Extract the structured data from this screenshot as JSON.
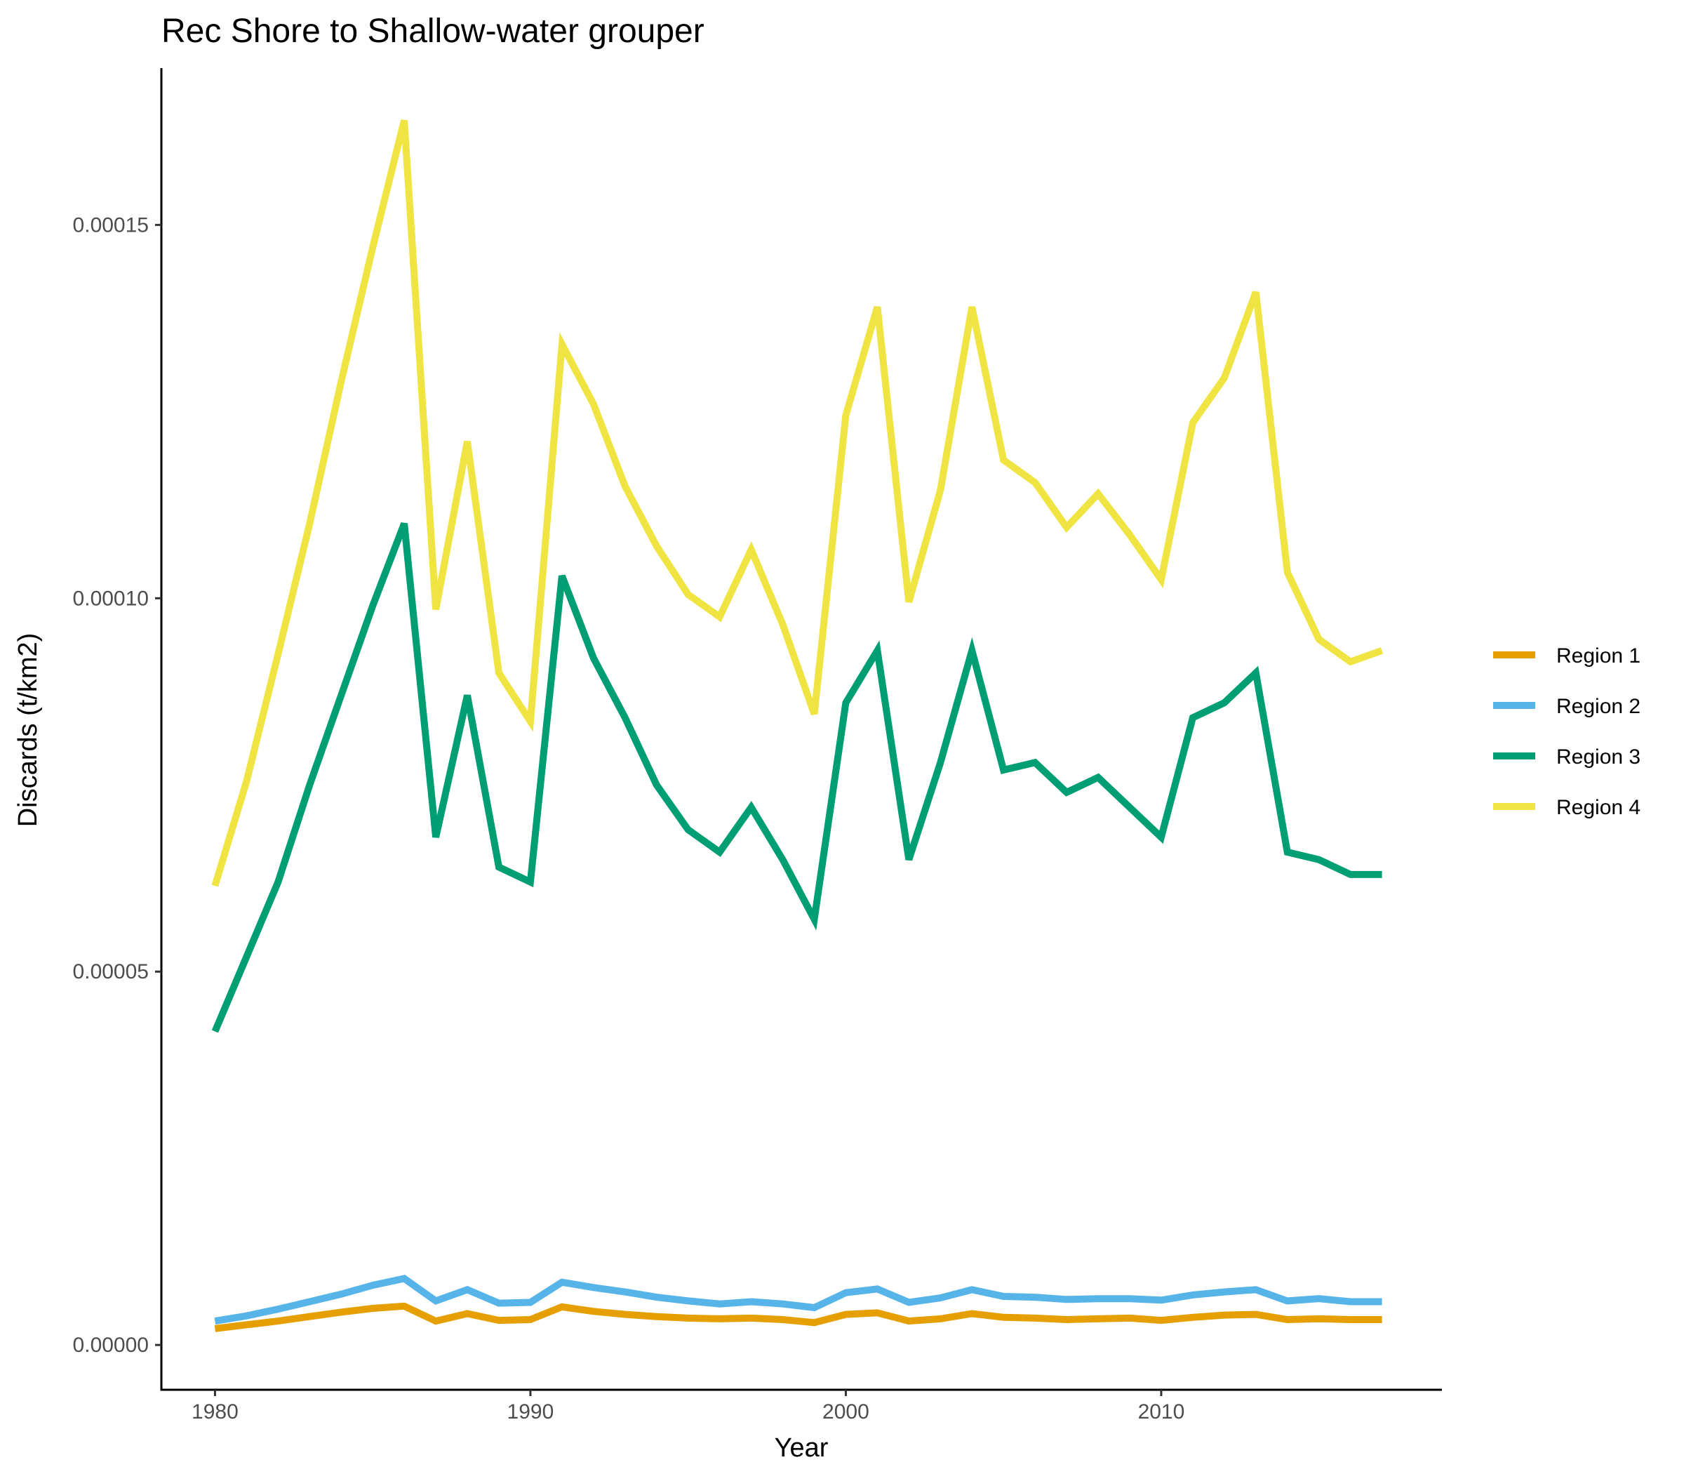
{
  "chart_data": {
    "type": "line",
    "title": "Rec Shore to Shallow-water grouper",
    "xlabel": "Year",
    "ylabel": "Discards (t/km2)",
    "xlim": [
      1978.3,
      2018.9
    ],
    "ylim": [
      -6e-06,
      0.000171
    ],
    "x_ticks": [
      1980,
      1990,
      2000,
      2010
    ],
    "x_tick_labels": [
      "1980",
      "1990",
      "2000",
      "2010"
    ],
    "y_ticks": [
      0,
      5e-05,
      0.0001,
      0.00015
    ],
    "y_tick_labels": [
      "0.00000",
      "0.00005",
      "0.00010",
      "0.00015"
    ],
    "grid": false,
    "legend_position": "right",
    "x": [
      1980.0,
      1981.0,
      1982.0,
      1983.0,
      1984.0,
      1985.0,
      1986.0,
      1987.0,
      1988.0,
      1989.0,
      1990.0,
      1991.0,
      1992.0,
      1993.0,
      1994.0,
      1995.0,
      1996.0,
      1997.0,
      1998.0,
      1999.0,
      2000.0,
      2001.0,
      2002.0,
      2003.0,
      2004.0,
      2005.0,
      2006.0,
      2007.0,
      2008.0,
      2009.0,
      2010.0,
      2011.0,
      2012.0,
      2013.0,
      2014.0,
      2015.0,
      2016.0,
      2017.0
    ],
    "series": [
      {
        "name": "Region 1",
        "color": "#E69F00",
        "values": [
          2.2e-06,
          2.7e-06,
          3.2e-06,
          3.8e-06,
          4.4e-06,
          4.9e-06,
          5.2e-06,
          3.2e-06,
          4.2e-06,
          3.3e-06,
          3.4e-06,
          5.1e-06,
          4.5e-06,
          4.1e-06,
          3.8e-06,
          3.6e-06,
          3.5e-06,
          3.6e-06,
          3.4e-06,
          3e-06,
          4.1e-06,
          4.3e-06,
          3.2e-06,
          3.5e-06,
          4.2e-06,
          3.7e-06,
          3.6e-06,
          3.4e-06,
          3.5e-06,
          3.6e-06,
          3.3e-06,
          3.7e-06,
          4e-06,
          4.1e-06,
          3.4e-06,
          3.5e-06,
          3.4e-06,
          3.4e-06
        ]
      },
      {
        "name": "Region 2",
        "color": "#56B4E9",
        "values": [
          3.2e-06,
          3.9e-06,
          4.8e-06,
          5.8e-06,
          6.8e-06,
          8e-06,
          8.9e-06,
          5.9e-06,
          7.4e-06,
          5.6e-06,
          5.7e-06,
          8.4e-06,
          7.7e-06,
          7.1e-06,
          6.4e-06,
          5.9e-06,
          5.5e-06,
          5.8e-06,
          5.5e-06,
          5e-06,
          7e-06,
          7.5e-06,
          5.7e-06,
          6.3e-06,
          7.4e-06,
          6.5e-06,
          6.4e-06,
          6.1e-06,
          6.2e-06,
          6.2e-06,
          6e-06,
          6.7e-06,
          7.1e-06,
          7.4e-06,
          5.9e-06,
          6.2e-06,
          5.8e-06,
          5.8e-06
        ]
      },
      {
        "name": "Region 3",
        "color": "#009E73",
        "values": [
          4.2e-05,
          5.2e-05,
          6.2e-05,
          7.5e-05,
          8.7e-05,
          9.9e-05,
          0.00011,
          6.8e-05,
          8.7e-05,
          6.4e-05,
          6.2e-05,
          0.000103,
          9.2e-05,
          8.4e-05,
          7.5e-05,
          6.9e-05,
          6.6e-05,
          7.2e-05,
          6.5e-05,
          5.7e-05,
          8.6e-05,
          9.3e-05,
          6.5e-05,
          7.8e-05,
          9.3e-05,
          7.7e-05,
          7.8e-05,
          7.4e-05,
          7.6e-05,
          7.2e-05,
          6.8e-05,
          8.4e-05,
          8.6e-05,
          9e-05,
          6.6e-05,
          6.5e-05,
          6.3e-05,
          6.3e-05
        ]
      },
      {
        "name": "Region 4",
        "color": "#F0E442",
        "values": [
          6.15e-05,
          7.55e-05,
          9.25e-05,
          0.00011,
          0.000129,
          0.000147,
          0.000164,
          9.85e-05,
          0.000121,
          9e-05,
          8.35e-05,
          0.000134,
          0.000126,
          0.000115,
          0.000107,
          0.0001005,
          9.75e-05,
          0.0001065,
          9.65e-05,
          8.45e-05,
          0.0001245,
          0.000139,
          9.95e-05,
          0.0001145,
          0.000139,
          0.0001185,
          0.0001155,
          0.0001095,
          0.000114,
          0.0001085,
          0.0001025,
          0.0001235,
          0.0001295,
          0.000141,
          0.0001035,
          9.45e-05,
          9.15e-05,
          9.3e-05
        ]
      }
    ]
  }
}
